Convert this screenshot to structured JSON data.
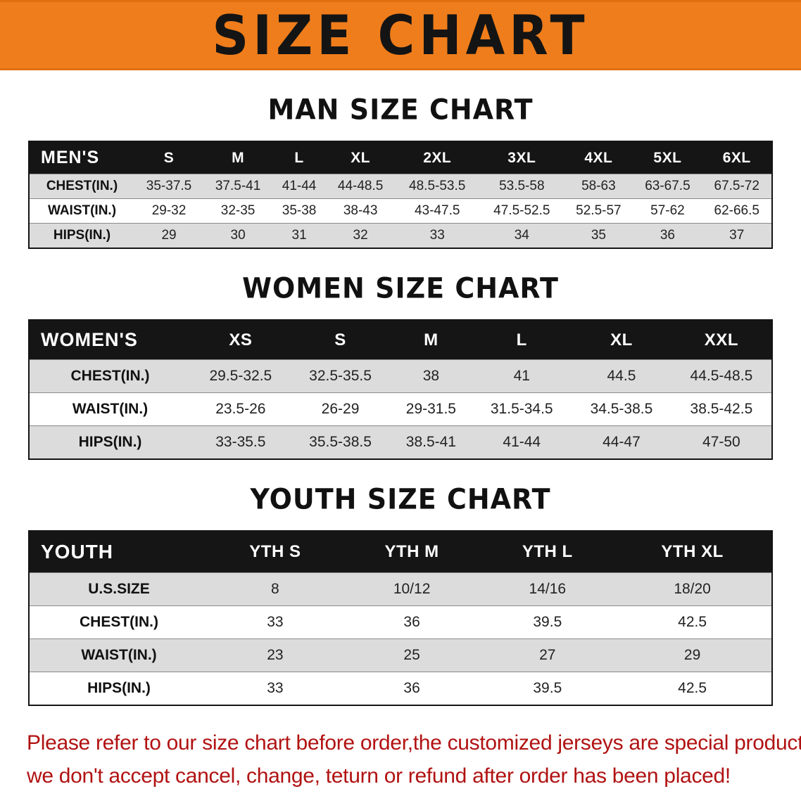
{
  "banner": {
    "title": "SIZE CHART",
    "background_color": "#EF7D1B",
    "text_color": "#141414"
  },
  "colors": {
    "table_header_bg": "#151515",
    "table_header_text": "#FFFFFF",
    "row_stripe_gray": "#DCDCDC",
    "disclaimer_red": "#B11212"
  },
  "sections": [
    {
      "heading": "MAN SIZE CHART",
      "table": {
        "header": [
          "MEN'S",
          "S",
          "M",
          "L",
          "XL",
          "2XL",
          "3XL",
          "4XL",
          "5XL",
          "6XL"
        ],
        "rows": [
          [
            "CHEST(IN.)",
            "35-37.5",
            "37.5-41",
            "41-44",
            "44-48.5",
            "48.5-53.5",
            "53.5-58",
            "58-63",
            "63-67.5",
            "67.5-72"
          ],
          [
            "WAIST(IN.)",
            "29-32",
            "32-35",
            "35-38",
            "38-43",
            "43-47.5",
            "47.5-52.5",
            "52.5-57",
            "57-62",
            "62-66.5"
          ],
          [
            "HIPS(IN.)",
            "29",
            "30",
            "31",
            "32",
            "33",
            "34",
            "35",
            "36",
            "37"
          ]
        ]
      }
    },
    {
      "heading": "WOMEN SIZE CHART",
      "table": {
        "header": [
          "WOMEN'S",
          "XS",
          "S",
          "M",
          "L",
          "XL",
          "XXL"
        ],
        "rows": [
          [
            "CHEST(IN.)",
            "29.5-32.5",
            "32.5-35.5",
            "38",
            "41",
            "44.5",
            "44.5-48.5"
          ],
          [
            "WAIST(IN.)",
            "23.5-26",
            "26-29",
            "29-31.5",
            "31.5-34.5",
            "34.5-38.5",
            "38.5-42.5"
          ],
          [
            "HIPS(IN.)",
            "33-35.5",
            "35.5-38.5",
            "38.5-41",
            "41-44",
            "44-47",
            "47-50"
          ]
        ]
      }
    },
    {
      "heading": "YOUTH SIZE CHART",
      "table": {
        "header": [
          "YOUTH",
          "YTH S",
          "YTH M",
          "YTH L",
          "YTH XL"
        ],
        "rows": [
          [
            "U.S.SIZE",
            "8",
            "10/12",
            "14/16",
            "18/20"
          ],
          [
            "CHEST(IN.)",
            "33",
            "36",
            "39.5",
            "42.5"
          ],
          [
            "WAIST(IN.)",
            "23",
            "25",
            "27",
            "29"
          ],
          [
            "HIPS(IN.)",
            "33",
            "36",
            "39.5",
            "42.5"
          ]
        ]
      }
    }
  ],
  "disclaimer": {
    "line1": "Please refer to our size chart before order,the customized jerseys are special products,",
    "line2": "we don't accept cancel, change, teturn or refund after order has been placed!"
  }
}
